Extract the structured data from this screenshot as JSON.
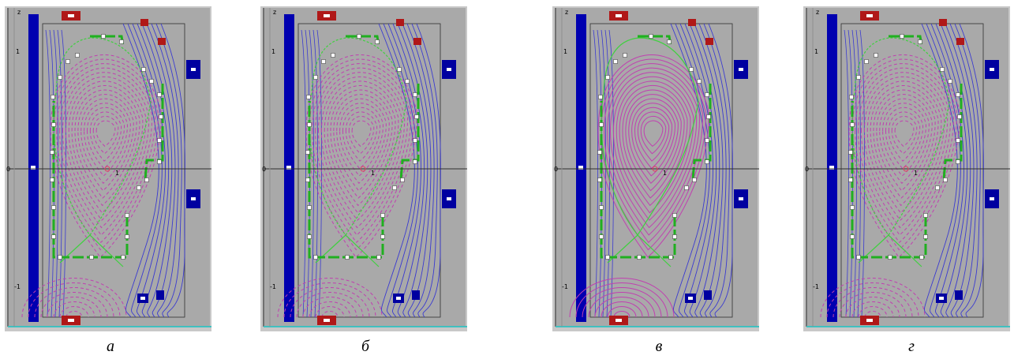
{
  "panels": [
    {
      "id": "a",
      "caption": "а",
      "variant": "dashed"
    },
    {
      "id": "b",
      "caption": "б",
      "variant": "dashed"
    },
    {
      "id": "v",
      "caption": "в",
      "variant": "solid"
    },
    {
      "id": "g",
      "caption": "г",
      "variant": "dashed"
    }
  ],
  "axis_labels": {
    "z": "z",
    "one": "1",
    "zero": "0",
    "minus_one": "-1",
    "r_one": "1"
  },
  "colors": {
    "background": "#a9a9a9",
    "plasma_contours": "#c040b0",
    "field_lines": "#3a3ad0",
    "wall": "#20b020",
    "separatrix": "#40d040",
    "coil_blue": "#0000a0",
    "coil_red": "#b01818",
    "central_solenoid": "#0000b0"
  }
}
